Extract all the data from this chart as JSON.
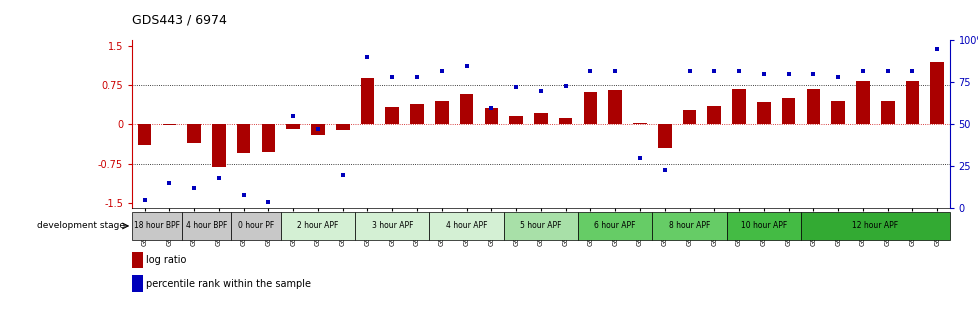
{
  "title": "GDS443 / 6974",
  "samples": [
    "GSM4585",
    "GSM4586",
    "GSM4587",
    "GSM4588",
    "GSM4589",
    "GSM4590",
    "GSM4591",
    "GSM4592",
    "GSM4593",
    "GSM4594",
    "GSM4595",
    "GSM4596",
    "GSM4597",
    "GSM4598",
    "GSM4599",
    "GSM4600",
    "GSM4601",
    "GSM4602",
    "GSM4603",
    "GSM4604",
    "GSM4605",
    "GSM4606",
    "GSM4607",
    "GSM4608",
    "GSM4609",
    "GSM4610",
    "GSM4611",
    "GSM4612",
    "GSM4613",
    "GSM4614",
    "GSM4615",
    "GSM4616",
    "GSM4617"
  ],
  "log_ratio": [
    -0.4,
    -0.02,
    -0.35,
    -0.82,
    -0.55,
    -0.52,
    -0.08,
    -0.2,
    -0.1,
    0.88,
    0.33,
    0.38,
    0.45,
    0.58,
    0.32,
    0.15,
    0.22,
    0.12,
    0.62,
    0.65,
    0.02,
    -0.45,
    0.28,
    0.35,
    0.68,
    0.42,
    0.5,
    0.68,
    0.45,
    0.82,
    0.45,
    0.82,
    1.18
  ],
  "percentile": [
    5,
    15,
    12,
    18,
    8,
    4,
    55,
    47,
    20,
    90,
    78,
    78,
    82,
    85,
    60,
    72,
    70,
    73,
    82,
    82,
    30,
    23,
    82,
    82,
    82,
    80,
    80,
    80,
    78,
    82,
    82,
    82,
    95
  ],
  "bar_color": "#aa0000",
  "dot_color": "#0000bb",
  "stages": [
    {
      "label": "18 hour BPF",
      "start": 0,
      "end": 2,
      "color": "#c8c8c8"
    },
    {
      "label": "4 hour BPF",
      "start": 2,
      "end": 4,
      "color": "#c8c8c8"
    },
    {
      "label": "0 hour PF",
      "start": 4,
      "end": 6,
      "color": "#c8c8c8"
    },
    {
      "label": "2 hour APF",
      "start": 6,
      "end": 9,
      "color": "#d4f0d4"
    },
    {
      "label": "3 hour APF",
      "start": 9,
      "end": 12,
      "color": "#d4f0d4"
    },
    {
      "label": "4 hour APF",
      "start": 12,
      "end": 15,
      "color": "#d4f0d4"
    },
    {
      "label": "5 hour APF",
      "start": 15,
      "end": 18,
      "color": "#a8e0a8"
    },
    {
      "label": "6 hour APF",
      "start": 18,
      "end": 21,
      "color": "#66cc66"
    },
    {
      "label": "8 hour APF",
      "start": 21,
      "end": 24,
      "color": "#66cc66"
    },
    {
      "label": "10 hour APF",
      "start": 24,
      "end": 27,
      "color": "#44bb44"
    },
    {
      "label": "12 hour APF",
      "start": 27,
      "end": 33,
      "color": "#33aa33"
    }
  ],
  "ylim_left": [
    -1.6,
    1.6
  ],
  "ylim_right": [
    0,
    100
  ],
  "yticks_left": [
    -1.5,
    -0.75,
    0.0,
    0.75,
    1.5
  ],
  "ytick_labels_left": [
    "-1.5",
    "-0.75",
    "0",
    "0.75",
    "1.5"
  ],
  "yticks_right": [
    0,
    25,
    50,
    75,
    100
  ],
  "ytick_labels_right": [
    "0",
    "25",
    "50",
    "75",
    "100%"
  ],
  "legend_log_ratio": "log ratio",
  "legend_percentile": "percentile rank within the sample",
  "dev_stage_label": "development stage",
  "background_color": "#ffffff",
  "hline_color_zero": "#cc0000",
  "hline_color_dotted": "#000000"
}
